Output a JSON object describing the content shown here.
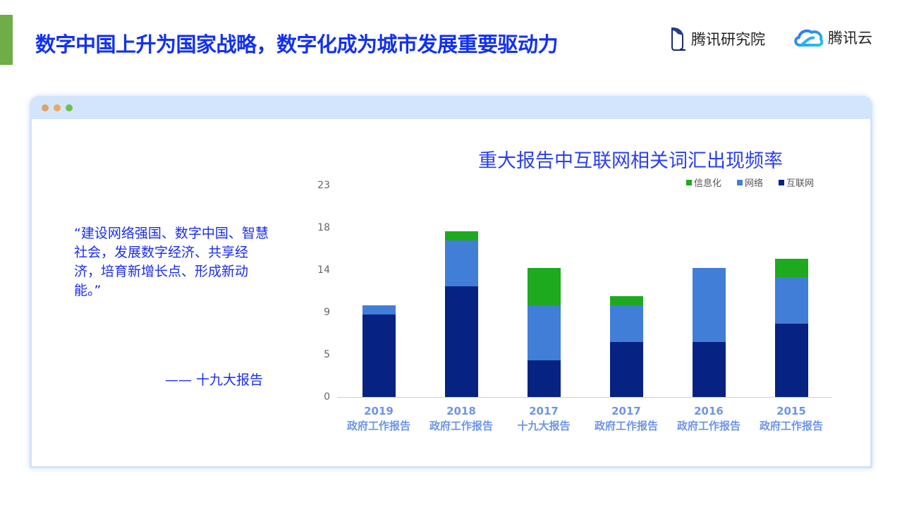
{
  "header": {
    "title": "数字中国上升为国家战略，数字化成为城市发展重要驱动力",
    "accent_color": "#6fad47",
    "title_color": "#1230f2",
    "logos": [
      {
        "name": "tencent-research-logo",
        "icon": "penguin-outline-icon",
        "label": "腾讯研究院"
      },
      {
        "name": "tencent-cloud-logo",
        "icon": "cloud-icon",
        "label": "腾讯云"
      }
    ]
  },
  "window": {
    "controls": [
      "close",
      "minimize",
      "maximize"
    ]
  },
  "quote": {
    "text": "“建设网络强国、数字中国、智慧社会，发展数字经济、共享经济，培育新增长点、形成新动能。”",
    "source": "—— 十九大报告"
  },
  "chart_data": {
    "type": "bar",
    "stacked": true,
    "title": "重大报告中互联网相关词汇出现频率",
    "xlabel": "",
    "ylabel": "",
    "ylim": [
      0,
      23
    ],
    "y_ticks": [
      "0",
      "5",
      "9",
      "14",
      "18",
      "23"
    ],
    "grid": false,
    "legend_position": "top-right",
    "categories": [
      {
        "year": "2019",
        "report": "政府工作报告"
      },
      {
        "year": "2018",
        "report": "政府工作报告"
      },
      {
        "year": "2017",
        "report": "十九大报告"
      },
      {
        "year": "2017",
        "report": "政府工作报告"
      },
      {
        "year": "2016",
        "report": "政府工作报告"
      },
      {
        "year": "2015",
        "report": "政府工作报告"
      }
    ],
    "series": [
      {
        "name": "互联网",
        "color": "#062283",
        "values": [
          9,
          12,
          4,
          6,
          6,
          8
        ]
      },
      {
        "name": "网络",
        "color": "#417ed8",
        "values": [
          1,
          5,
          6,
          4,
          8,
          5
        ]
      },
      {
        "name": "信息化",
        "color": "#1eaa1e",
        "values": [
          0,
          1,
          4,
          1,
          0,
          2
        ]
      }
    ],
    "legend": [
      "信息化",
      "网络",
      "互联网"
    ]
  }
}
